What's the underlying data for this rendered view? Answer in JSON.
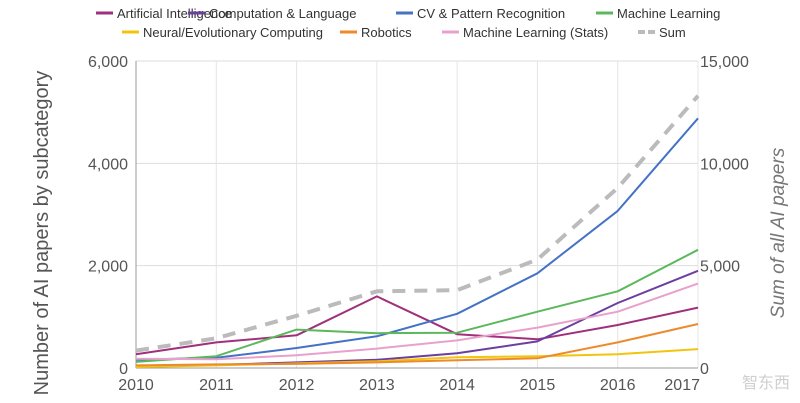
{
  "chart_data": {
    "type": "line",
    "categories": [
      "2010",
      "2011",
      "2012",
      "2013",
      "2014",
      "2015",
      "2016",
      "2017"
    ],
    "series": [
      {
        "name": "Artificial Intelligence",
        "axis": "left",
        "color": "#a0307c",
        "dashed": false,
        "values": [
          270,
          500,
          640,
          1400,
          660,
          560,
          840,
          1180
        ]
      },
      {
        "name": "Computation & Language",
        "axis": "left",
        "color": "#6b3fa0",
        "dashed": false,
        "values": [
          30,
          60,
          110,
          160,
          290,
          520,
          1270,
          1900
        ]
      },
      {
        "name": "CV & Pattern Recognition",
        "axis": "left",
        "color": "#4472c4",
        "dashed": false,
        "values": [
          160,
          200,
          390,
          620,
          1060,
          1850,
          3070,
          4880
        ]
      },
      {
        "name": "Machine Learning",
        "axis": "left",
        "color": "#5cb85c",
        "dashed": false,
        "values": [
          120,
          230,
          750,
          680,
          690,
          1100,
          1500,
          2310
        ]
      },
      {
        "name": "Neural/Evolutionary Computing",
        "axis": "left",
        "color": "#f2c40e",
        "dashed": false,
        "values": [
          20,
          50,
          90,
          130,
          210,
          230,
          270,
          370
        ]
      },
      {
        "name": "Robotics",
        "axis": "left",
        "color": "#ed8a2c",
        "dashed": false,
        "values": [
          50,
          70,
          80,
          110,
          150,
          190,
          500,
          860
        ]
      },
      {
        "name": "Machine Learning (Stats)",
        "axis": "left",
        "color": "#e8a1cc",
        "dashed": false,
        "values": [
          180,
          170,
          250,
          380,
          540,
          790,
          1100,
          1650
        ]
      },
      {
        "name": "Sum",
        "axis": "right",
        "color": "#bbbbbb",
        "dashed": true,
        "values": [
          850,
          1450,
          2550,
          3750,
          3800,
          5300,
          8800,
          13300
        ]
      }
    ],
    "left_axis": {
      "label": "Number of AI papers by subcategory",
      "min": 0,
      "max": 6000,
      "ticks": [
        0,
        2000,
        4000,
        6000
      ],
      "tick_labels": [
        "0",
        "2,000",
        "4,000",
        "6,000"
      ]
    },
    "right_axis": {
      "label": "Sum of all AI papers",
      "min": 0,
      "max": 15000,
      "ticks": [
        0,
        5000,
        10000,
        15000
      ],
      "tick_labels": [
        "0",
        "5,000",
        "10,000",
        "15,000"
      ]
    },
    "xlabel": "",
    "grid": true,
    "legend_position": "top"
  },
  "watermark": "智东西"
}
